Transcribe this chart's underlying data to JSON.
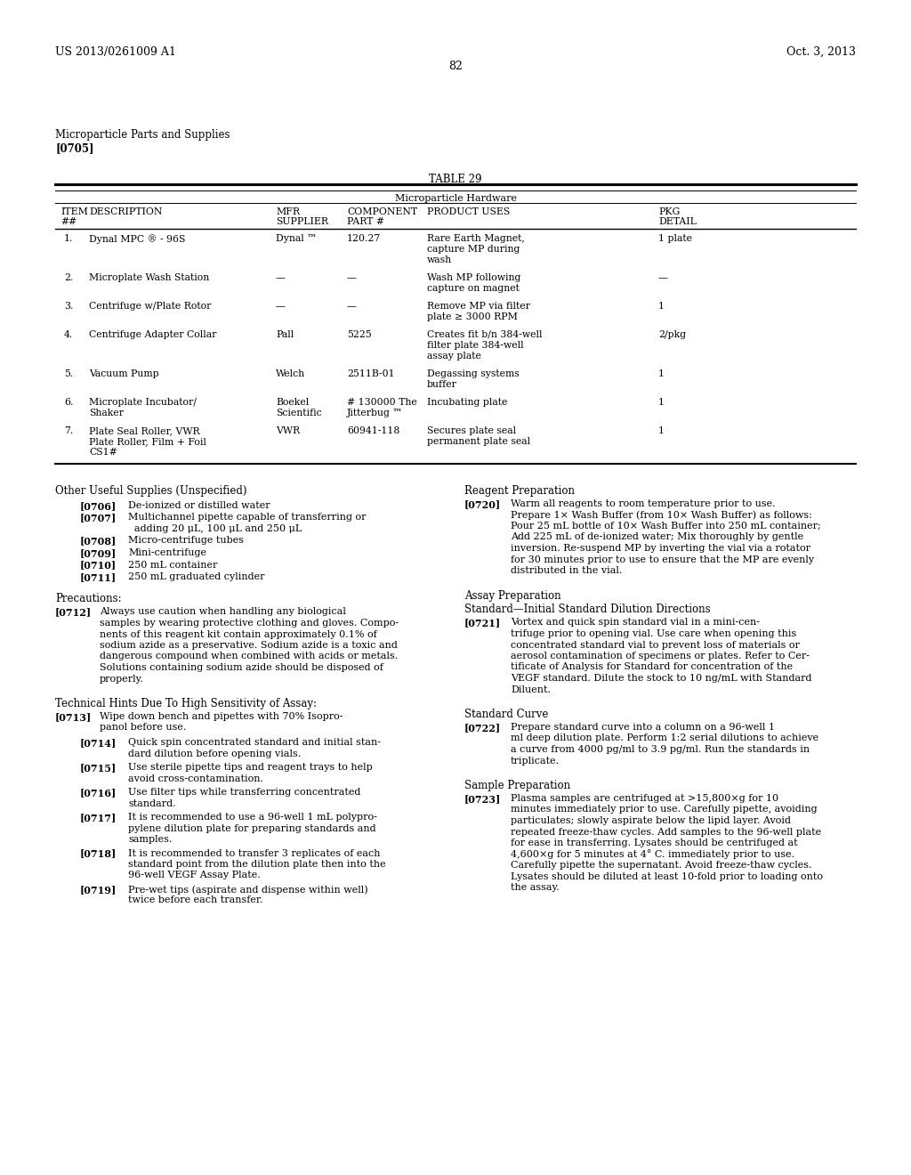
{
  "header_left": "US 2013/0261009 A1",
  "header_right": "Oct. 3, 2013",
  "page_number": "82",
  "section_title": "Microparticle Parts and Supplies",
  "section_tag": "[0705]",
  "table_title": "TABLE 29",
  "table_subtitle": "Microparticle Hardware",
  "bg_color": "#ffffff",
  "text_color": "#000000"
}
